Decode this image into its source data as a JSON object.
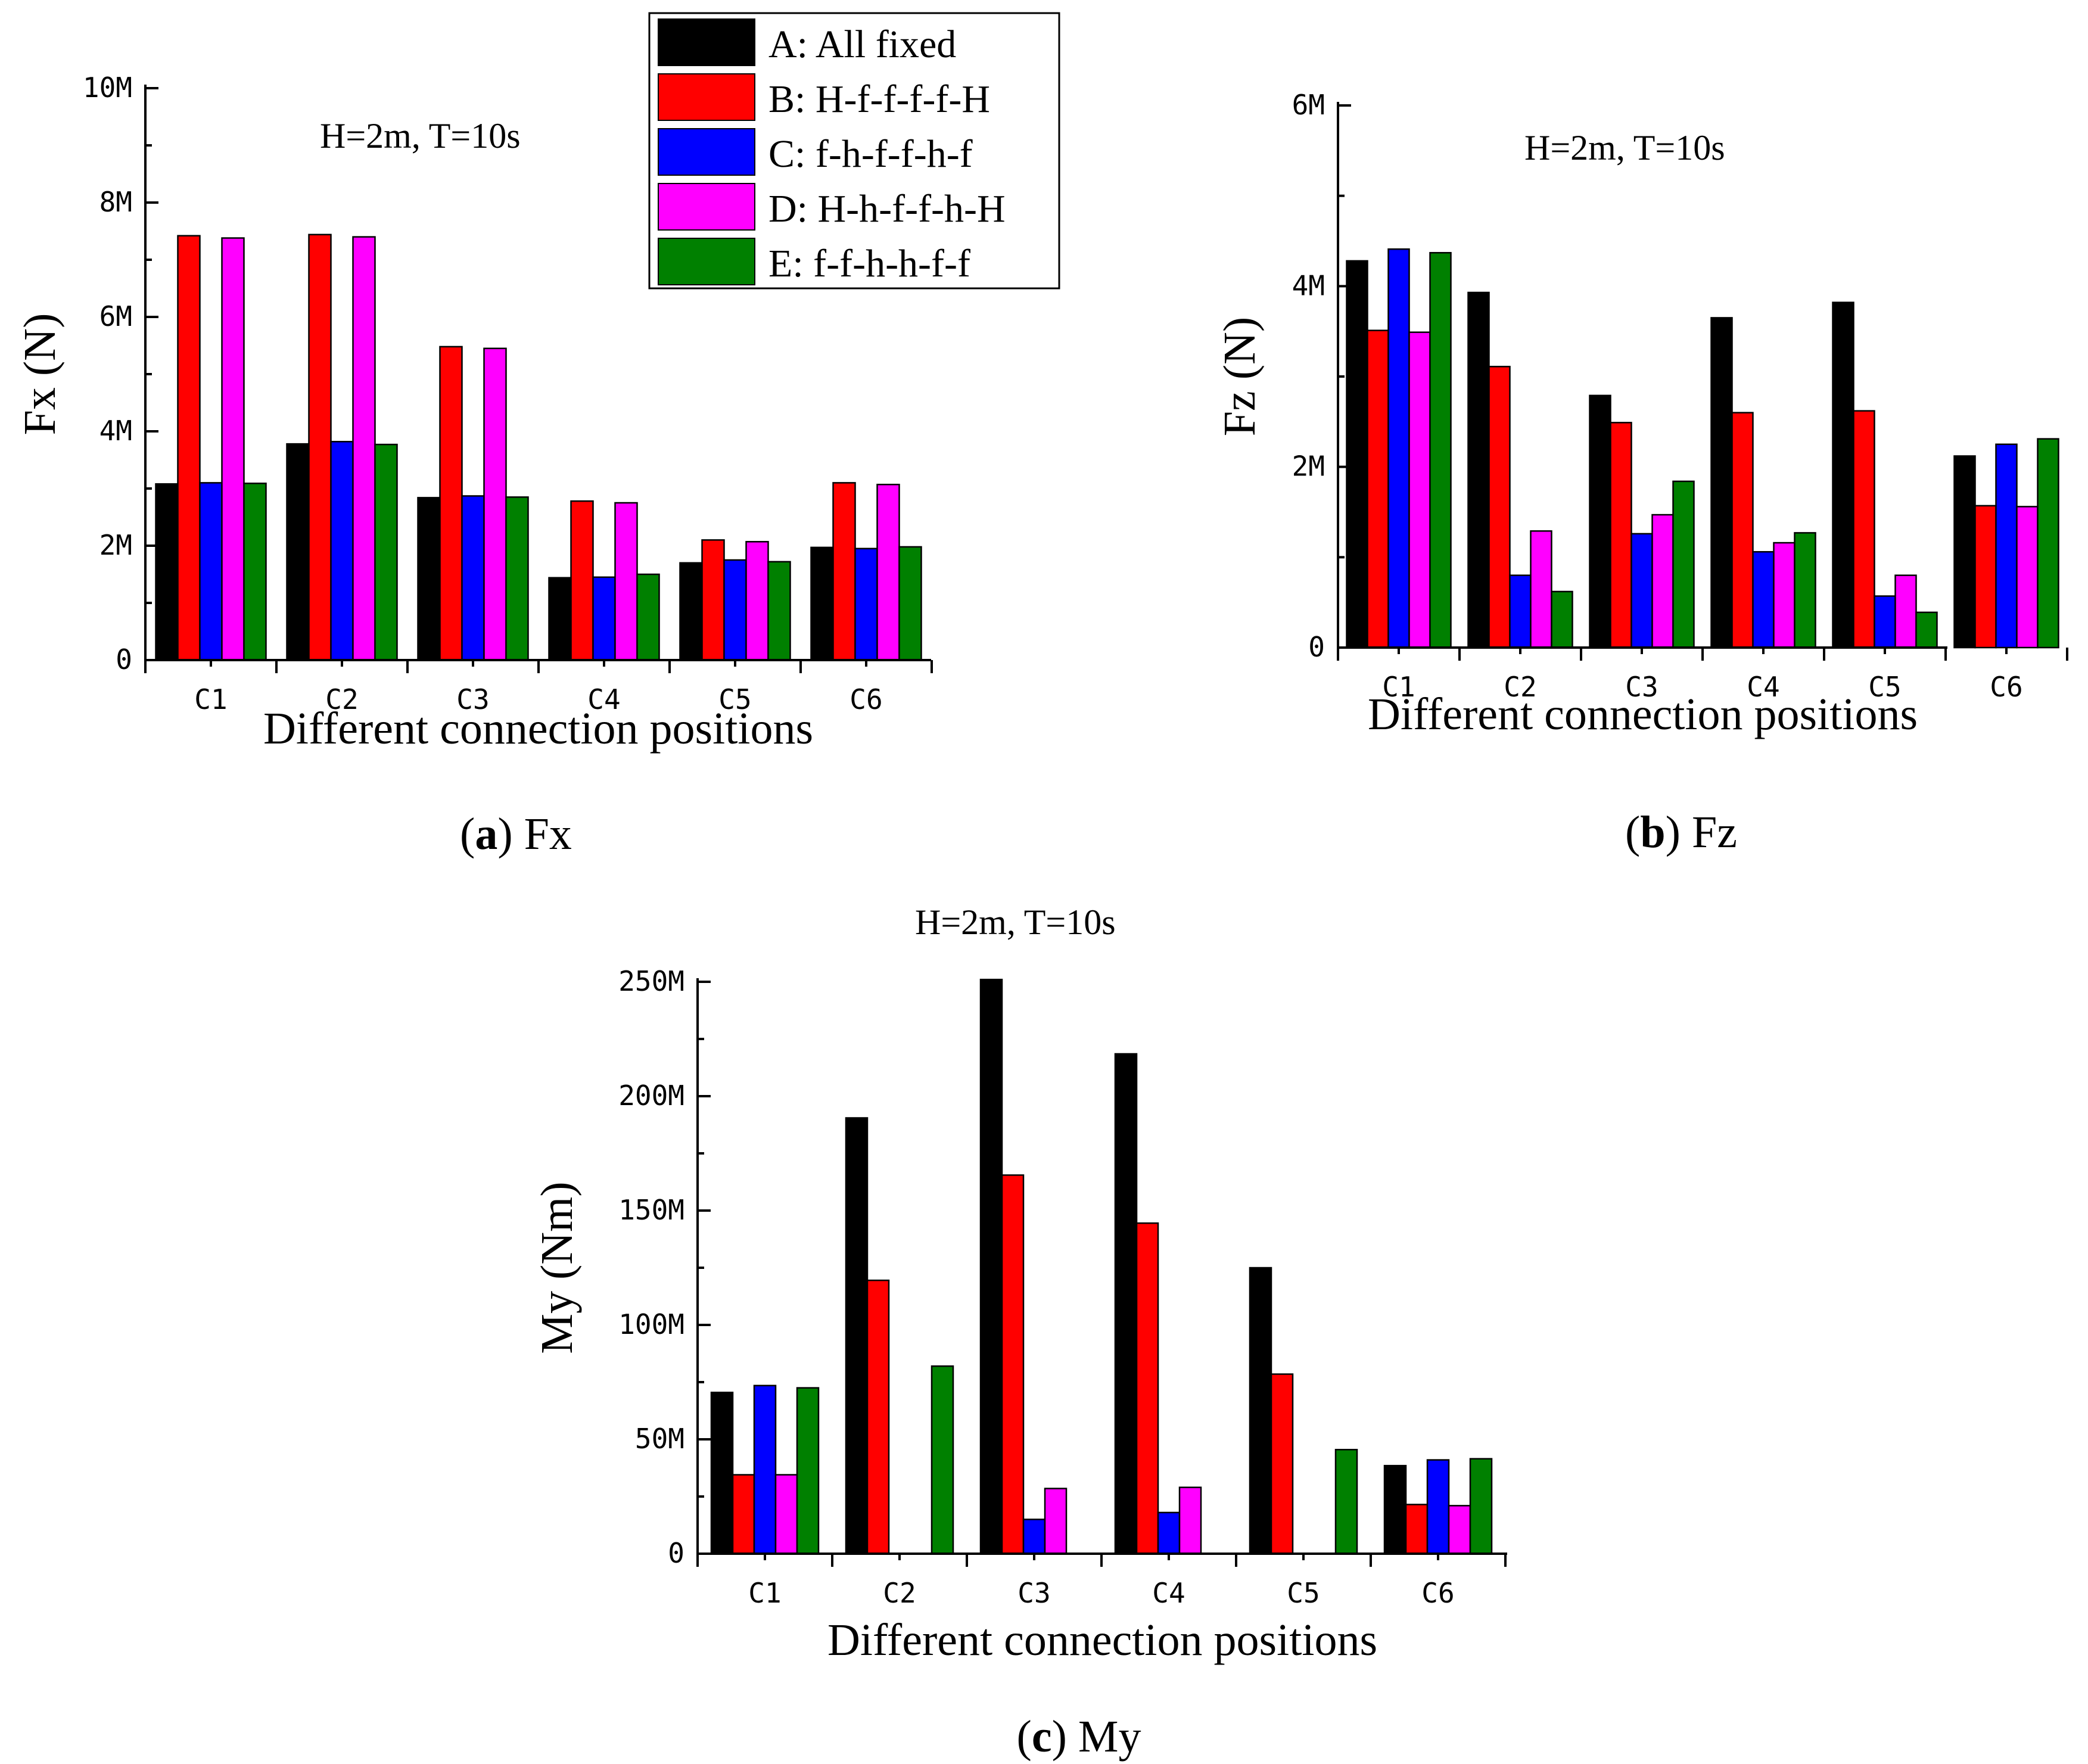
{
  "legend": {
    "entries": [
      {
        "key": "A",
        "label": "A: All fixed",
        "color": "#000000"
      },
      {
        "key": "B",
        "label": "B: H-f-f-f-f-H",
        "color": "#ff0000"
      },
      {
        "key": "C",
        "label": "C: f-h-f-f-h-f",
        "color": "#0000ff"
      },
      {
        "key": "D",
        "label": "D: H-h-f-f-h-H",
        "color": "#ff00ff"
      },
      {
        "key": "E",
        "label": "E: f-f-h-h-f-f",
        "color": "#008000"
      }
    ]
  },
  "chart_data": [
    {
      "id": "a",
      "type": "bar",
      "caption_letter": "a",
      "caption_text": " Fx",
      "annotation": "H=2m, T=10s",
      "xlabel": "Different connection positions",
      "ylabel": "Fx (N)",
      "categories": [
        "C1",
        "C2",
        "C3",
        "C4",
        "C5",
        "C6"
      ],
      "ylim": [
        0,
        10000000
      ],
      "yticks": [
        0,
        2000000,
        4000000,
        6000000,
        8000000,
        10000000
      ],
      "ytick_labels": [
        "0",
        "2M",
        "4M",
        "6M",
        "8M",
        "10M"
      ],
      "series": [
        {
          "key": "A",
          "values": [
            3080000,
            3780000,
            2840000,
            1440000,
            1700000,
            1970000
          ]
        },
        {
          "key": "B",
          "values": [
            7420000,
            7440000,
            5480000,
            2780000,
            2100000,
            3100000
          ]
        },
        {
          "key": "C",
          "values": [
            3100000,
            3820000,
            2870000,
            1450000,
            1750000,
            1950000
          ]
        },
        {
          "key": "D",
          "values": [
            7380000,
            7400000,
            5450000,
            2750000,
            2070000,
            3070000
          ]
        },
        {
          "key": "E",
          "values": [
            3090000,
            3770000,
            2850000,
            1500000,
            1720000,
            1980000
          ]
        }
      ]
    },
    {
      "id": "b",
      "type": "bar",
      "caption_letter": "b",
      "caption_text": " Fz",
      "annotation": "H=2m, T=10s",
      "xlabel": "Different connection positions",
      "ylabel": "Fz (N)",
      "categories": [
        "C1",
        "C2",
        "C3",
        "C4",
        "C5",
        "C6"
      ],
      "ylim": [
        0,
        6000000
      ],
      "yticks": [
        0,
        2000000,
        4000000,
        6000000
      ],
      "ytick_labels": [
        "0",
        "2M",
        "4M",
        "6M"
      ],
      "series": [
        {
          "key": "A",
          "values": [
            4280000,
            3930000,
            2790000,
            3650000,
            3820000,
            2120000
          ]
        },
        {
          "key": "B",
          "values": [
            3510000,
            3110000,
            2490000,
            2600000,
            2620000,
            1570000
          ]
        },
        {
          "key": "C",
          "values": [
            4410000,
            800000,
            1260000,
            1060000,
            570000,
            2250000
          ]
        },
        {
          "key": "D",
          "values": [
            3490000,
            1290000,
            1470000,
            1160000,
            800000,
            1560000
          ]
        },
        {
          "key": "E",
          "values": [
            4370000,
            620000,
            1840000,
            1270000,
            390000,
            2310000
          ]
        }
      ]
    },
    {
      "id": "c",
      "type": "bar",
      "caption_letter": "c",
      "caption_text": " My",
      "annotation": "H=2m, T=10s",
      "xlabel": "Different connection positions",
      "ylabel": "My (Nm)",
      "categories": [
        "C1",
        "C2",
        "C3",
        "C4",
        "C5",
        "C6"
      ],
      "ylim": [
        0,
        250000000
      ],
      "yticks": [
        0,
        50000000,
        100000000,
        150000000,
        200000000,
        250000000
      ],
      "ytick_labels": [
        "0",
        "50M",
        "100M",
        "150M",
        "200M",
        "250M"
      ],
      "series": [
        {
          "key": "A",
          "values": [
            70500000,
            190500000,
            251000000,
            218500000,
            125000000,
            38500000
          ]
        },
        {
          "key": "B",
          "values": [
            34500000,
            119500000,
            165500000,
            144500000,
            78500000,
            21500000
          ]
        },
        {
          "key": "C",
          "values": [
            73500000,
            0,
            15000000,
            18000000,
            0,
            41000000
          ]
        },
        {
          "key": "D",
          "values": [
            34500000,
            0,
            28500000,
            29000000,
            0,
            21000000
          ]
        },
        {
          "key": "E",
          "values": [
            72500000,
            82000000,
            0,
            0,
            45500000,
            41500000
          ]
        }
      ]
    }
  ]
}
